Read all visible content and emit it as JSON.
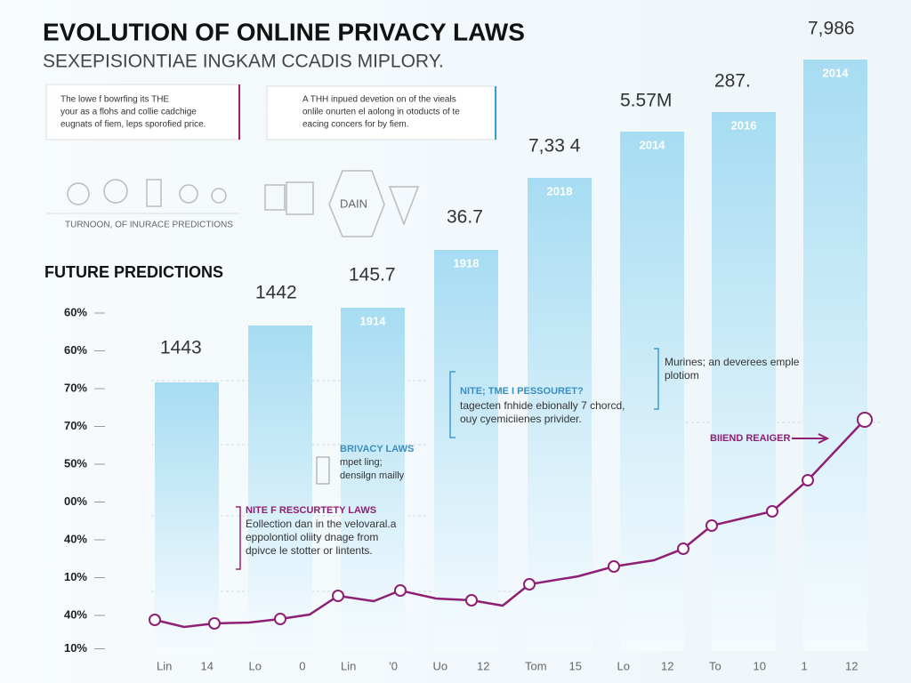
{
  "header": {
    "title": "EVOLUTION OF ONLINE PRIVACY LAWS",
    "subtitle": "SEXEPISIONTIAE INGKAM CCADIS MIPLORY."
  },
  "panels": [
    {
      "lines": [
        "The lowe f bowrfing its THE",
        "your as a flohs and collie cadchige",
        "eugnats of fiem, leps sporofied price."
      ],
      "footer": "TURNOON, OF INURACE PREDICTIONS"
    },
    {
      "lines": [
        "A THH inpued devetion on of the vieals",
        "onlile onurten el aolong in otoducts of te",
        "eacing concers for by fiem."
      ],
      "icon_label": "DAIN"
    }
  ],
  "chart": {
    "heading": "FUTURE PREDICTIONS",
    "axis_labels": [
      "60%",
      "60%",
      "70%",
      "70%",
      "50%",
      "00%",
      "40%",
      "10%",
      "40%",
      "10%"
    ],
    "bars": [
      {
        "label": "1443"
      },
      {
        "label": "1442"
      },
      {
        "label": "145.7",
        "year": "1914"
      },
      {
        "label": "36.7",
        "year": "1918"
      },
      {
        "label": "7,33 4",
        "year": "2018"
      },
      {
        "label": "5.57M",
        "year": "2014"
      },
      {
        "label": "287.",
        "year": "2016"
      },
      {
        "label": "7,986",
        "year": "2014"
      }
    ],
    "x_labels": [
      "Lin",
      "14",
      "Lo",
      "0",
      "Lin",
      "'0",
      "Uo",
      "12",
      "Tom",
      "15",
      "Lo",
      "12",
      "To",
      "10",
      "1",
      "12"
    ],
    "annotations": [
      {
        "title": "NITE F RESCURTETY LAWS",
        "lines": [
          "Eollection dan in the velovaral.a",
          "eppolontiol oliity dnage from",
          "dpivce le stotter or lintents."
        ]
      },
      {
        "title": "BRIVACY LAWS",
        "lines": [
          "mpet ling;",
          "densilgn mailly"
        ]
      },
      {
        "title": "NITE; TME I PESSOURET?",
        "lines": [
          "tagecten fnhide ebionally 7 chorcd,",
          "ouy cyemiciienes privider."
        ]
      },
      {
        "lines": [
          "Murines; an deverees emple",
          "plotiom"
        ]
      },
      {
        "title": "BIIEND REAIGER"
      }
    ]
  }
}
